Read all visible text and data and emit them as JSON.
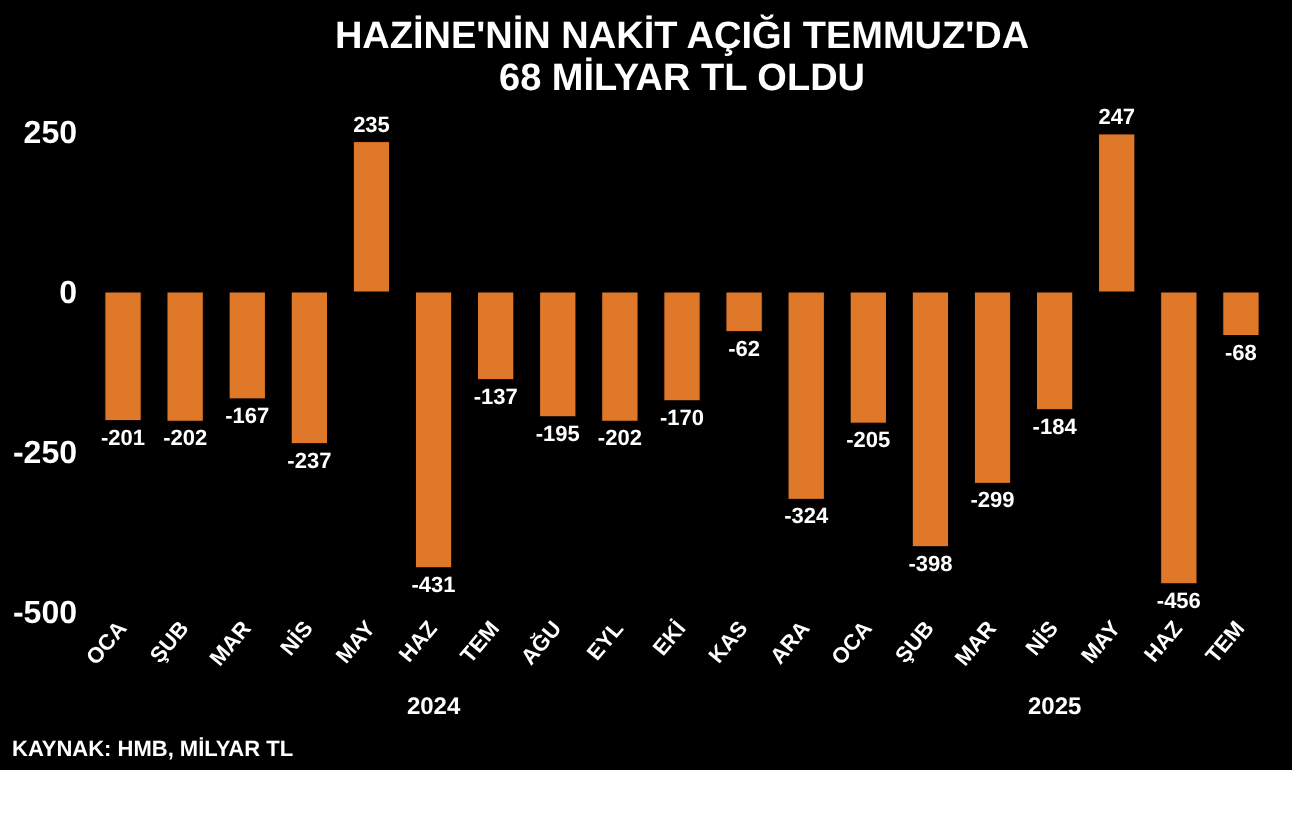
{
  "chart_data": {
    "type": "bar",
    "title": "HAZİNE'NİN NAKİT AÇIĞI TEMMUZ'DA\n68 MİLYAR TL OLDU",
    "categories": [
      "OCA",
      "ŞUB",
      "MAR",
      "NİS",
      "MAY",
      "HAZ",
      "TEM",
      "AĞU",
      "EYL",
      "EKİ",
      "KAS",
      "ARA",
      "OCA",
      "ŞUB",
      "MAR",
      "NİS",
      "MAY",
      "HAZ",
      "TEM"
    ],
    "values": [
      -201,
      -202,
      -167,
      -237,
      235,
      -431,
      -137,
      -195,
      -202,
      -170,
      -62,
      -324,
      -205,
      -398,
      -299,
      -184,
      247,
      -456,
      -68
    ],
    "color": "#e0782a",
    "ylim": [
      -500,
      250
    ],
    "yticks": [
      -500,
      -250,
      0,
      250
    ],
    "grid": false,
    "data_labels": true,
    "annotations": [
      "2024",
      "2025",
      "KAYNAK: HMB, MİLYAR TL"
    ]
  }
}
